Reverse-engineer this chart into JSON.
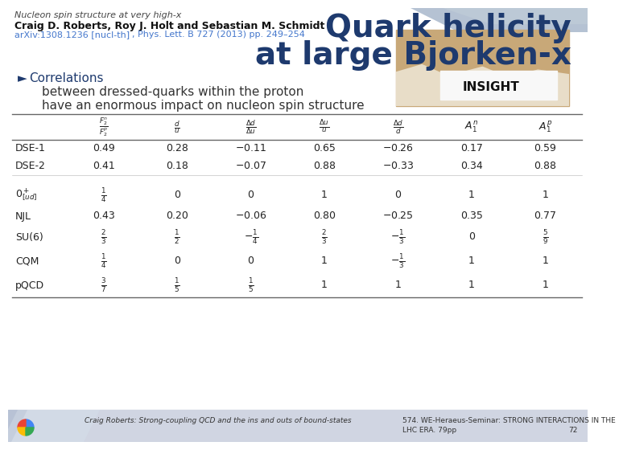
{
  "bg_color": "#ffffff",
  "title_text_line1": "Quark helicity",
  "title_text_line2": "at large Bjorken-x",
  "title_color": "#1e3a6e",
  "slide_title_line1": "Nucleon spin structure at very high-x",
  "slide_title_line2": "Craig D. Roberts, Roy J. Holt and Sebastian M. Schmidt",
  "slide_title_line3_part1": "arXiv:1308.1236 [nucl-th]",
  "slide_title_line3_part2": ", Phys. Lett. B 727 (2013) pp. 249–254",
  "bullet_arrow": "►",
  "bullet_word": " Correlations",
  "bullet_line2": "between dressed-quarks within the proton",
  "bullet_line3": "have an enormous impact on nucleon spin structure",
  "col_headers": [
    "$\\frac{F_2^n}{F_2^p}$",
    "$\\frac{d}{u}$",
    "$\\frac{\\Delta d}{\\Delta u}$",
    "$\\frac{\\Delta u}{u}$",
    "$\\frac{\\Delta d}{d}$",
    "$A_1^n$",
    "$A_1^p$"
  ],
  "row_labels": [
    "DSE-1",
    "DSE-2",
    "",
    "$0^+_{[ud]}$",
    "NJL",
    "SU(6)",
    "CQM",
    "pQCD"
  ],
  "table_data": [
    [
      "0.49",
      "0.28",
      "$-$0.11",
      "0.65",
      "$-$0.26",
      "0.17",
      "0.59"
    ],
    [
      "0.41",
      "0.18",
      "$-$0.07",
      "0.88",
      "$-$0.33",
      "0.34",
      "0.88"
    ],
    [
      "",
      "",
      "",
      "",
      "",
      "",
      ""
    ],
    [
      "$\\frac{1}{4}$",
      "0",
      "0",
      "1",
      "0",
      "1",
      "1"
    ],
    [
      "0.43",
      "0.20",
      "$-$0.06",
      "0.80",
      "$-$0.25",
      "0.35",
      "0.77"
    ],
    [
      "$\\frac{2}{3}$",
      "$\\frac{1}{2}$",
      "$-\\frac{1}{4}$",
      "$\\frac{2}{3}$",
      "$-\\frac{1}{3}$",
      "0",
      "$\\frac{5}{9}$"
    ],
    [
      "$\\frac{1}{4}$",
      "0",
      "0",
      "1",
      "$-\\frac{1}{3}$",
      "1",
      "1"
    ],
    [
      "$\\frac{3}{7}$",
      "$\\frac{1}{5}$",
      "$\\frac{1}{5}$",
      "1",
      "1",
      "1",
      "1"
    ]
  ],
  "footer_left": "Craig Roberts: Strong-coupling QCD and the ins and outs of bound-states",
  "footer_right1": "574. WE-Heraeus-Seminar: STRONG INTERACTIONS IN THE",
  "footer_right2": "LHC ERA. 79pp",
  "footer_page": "72",
  "table_text_color": "#222222",
  "link_color": "#4477cc",
  "line_color": "#666666",
  "deco_blue": "#a8b8cc",
  "deco_blue2": "#c0ccd8"
}
